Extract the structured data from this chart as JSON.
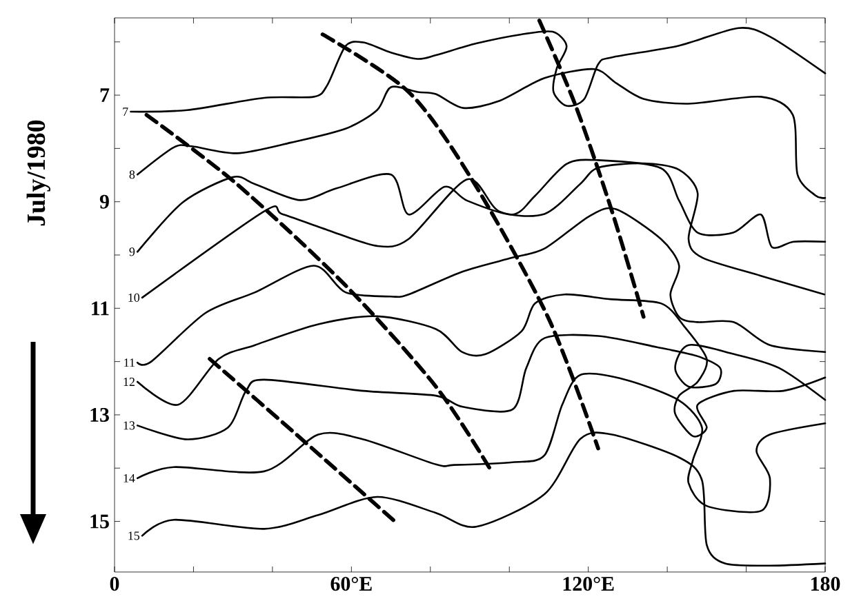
{
  "chart_data": {
    "type": "line",
    "ylabel": "July/1980",
    "xlim": [
      0,
      180
    ],
    "ylim": [
      15.95,
      5.55
    ],
    "xticks": [
      0,
      {
        "value": 20,
        "label": null
      },
      {
        "value": 40,
        "label": null
      },
      {
        "value": 60,
        "label": "60°E"
      },
      {
        "value": 80,
        "label": null
      },
      {
        "value": 100,
        "label": null
      },
      {
        "value": 120,
        "label": "120°E"
      },
      {
        "value": 140,
        "label": null
      },
      {
        "value": 160,
        "label": null
      },
      180
    ],
    "yticks": [
      {
        "value": 6,
        "label": null
      },
      7,
      {
        "value": 8,
        "label": null
      },
      9,
      {
        "value": 10,
        "label": null
      },
      11,
      {
        "value": 12,
        "label": null
      },
      13,
      {
        "value": 14,
        "label": null
      },
      15
    ],
    "grid": false,
    "legend": "left",
    "marker": "none",
    "series": [
      {
        "name": "7",
        "color": "#000000",
        "line_style": "solid",
        "x": [
          4.1,
          18.4,
          37.9,
          50.5,
          53.9,
          58.5,
          63,
          70,
          76.8,
          81.4,
          91.6,
          103,
          111,
          114.5,
          112,
          111.2,
          114.5,
          119,
          122.5,
          126,
          143,
          158,
          166,
          180
        ],
        "values": [
          7.31,
          7.28,
          7.05,
          7.03,
          6.81,
          6.08,
          6.01,
          6.2,
          6.32,
          6.25,
          6.03,
          5.86,
          5.81,
          6.08,
          6.5,
          6.94,
          7.2,
          7.07,
          6.42,
          6.29,
          6.07,
          5.74,
          5.9,
          6.59
        ]
      },
      {
        "name": "8",
        "color": "#000000",
        "line_style": "solid",
        "x": [
          5.8,
          15,
          19.6,
          31,
          44.7,
          58.5,
          66.5,
          70,
          76.8,
          81.4,
          88.3,
          97.4,
          108.9,
          121.4,
          127,
          134,
          145.4,
          163.7,
          171.8,
          173,
          177.5,
          180
        ],
        "values": [
          8.49,
          7.98,
          7.96,
          8.09,
          7.89,
          7.63,
          7.28,
          6.85,
          6.94,
          6.98,
          7.24,
          7.11,
          6.68,
          6.51,
          6.77,
          7.07,
          7.16,
          7.03,
          7.37,
          8.49,
          8.88,
          8.93
        ]
      },
      {
        "name": "9",
        "color": "#000000",
        "line_style": "solid",
        "x": [
          5.8,
          17.3,
          29.9,
          35.6,
          47,
          56.2,
          70,
          74.5,
          83.6,
          89.3,
          100.8,
          106.5,
          114.5,
          122.5,
          138.4,
          143,
          147.7,
          156.7,
          163.7,
          166.5,
          172,
          180
        ],
        "values": [
          9.94,
          9.01,
          8.54,
          8.67,
          8.97,
          8.75,
          8.49,
          9.24,
          8.72,
          8.98,
          9.24,
          8.89,
          8.29,
          8.22,
          8.37,
          8.98,
          9.58,
          9.58,
          9.24,
          9.85,
          9.75,
          9.75
        ]
      },
      {
        "name": "10",
        "color": "#000000",
        "line_style": "solid",
        "x": [
          7,
          37.9,
          42.4,
          53.9,
          66.5,
          74.5,
          89.3,
          97.4,
          108.9,
          117.9,
          122.5,
          134,
          143,
          147.7,
          145.4,
          148.9,
          163.7,
          179.8
        ],
        "values": [
          10.8,
          9.18,
          9.23,
          9.53,
          9.83,
          9.7,
          8.58,
          9.18,
          9.23,
          8.67,
          8.36,
          8.28,
          8.4,
          8.84,
          9.7,
          10.05,
          10.39,
          10.74
        ]
      },
      {
        "name": "11",
        "color": "#000000",
        "line_style": "solid",
        "x": [
          5.8,
          9.3,
          23,
          35.6,
          50.5,
          58.5,
          70,
          74.5,
          88.2,
          100.8,
          108.9,
          120.3,
          127,
          138.4,
          143,
          140.8,
          143.1,
          147.7,
          156.9,
          166,
          180
        ],
        "values": [
          12.02,
          12.0,
          11.09,
          10.7,
          10.2,
          10.7,
          10.78,
          10.74,
          10.31,
          10.05,
          9.88,
          9.27,
          9.14,
          9.7,
          10.2,
          10.74,
          11.17,
          11.26,
          11.26,
          11.69,
          11.82
        ]
      },
      {
        "name": "12",
        "color": "#000000",
        "line_style": "solid",
        "x": [
          5.8,
          16.1,
          26.4,
          35.6,
          51.6,
          66.5,
          81.4,
          88,
          94,
          103.1,
          106.5,
          114,
          125.6,
          138.5,
          144.3,
          150,
          147.7,
          143,
          142,
          146.5,
          150,
          147.7,
          156.9,
          169.4,
          180
        ],
        "values": [
          12.38,
          12.81,
          11.95,
          11.69,
          11.3,
          11.15,
          11.39,
          11.82,
          11.86,
          11.43,
          10.91,
          10.74,
          10.83,
          10.91,
          11.34,
          11.95,
          12.38,
          12.64,
          12.98,
          13.4,
          13.24,
          12.81,
          12.55,
          12.55,
          12.3
        ]
      },
      {
        "name": "13",
        "color": "#000000",
        "line_style": "solid",
        "x": [
          5.8,
          18.4,
          28.7,
          33.3,
          37.9,
          63,
          81.4,
          88.2,
          100.8,
          104.3,
          108.9,
          122.6,
          137.4,
          147.7,
          153.4,
          152.3,
          145.4,
          142,
          145.4,
          156.9,
          168.3,
          180
        ],
        "values": [
          13.2,
          13.46,
          13.24,
          12.55,
          12.34,
          12.55,
          12.64,
          12.85,
          12.9,
          12.12,
          11.56,
          11.52,
          11.73,
          11.9,
          12.12,
          12.42,
          12.47,
          12.12,
          11.69,
          11.86,
          12.12,
          12.72
        ]
      },
      {
        "name": "14",
        "color": "#000000",
        "line_style": "solid",
        "x": [
          5.8,
          15,
          37.9,
          51.6,
          63,
          81.4,
          86,
          100.8,
          108.9,
          113.4,
          118,
          129.4,
          143,
          148.8,
          146.5,
          145.4,
          150,
          163.8,
          166,
          162.6,
          166,
          180
        ],
        "values": [
          14.19,
          13.98,
          14.06,
          13.37,
          13.46,
          13.93,
          13.94,
          13.89,
          13.76,
          12.81,
          12.25,
          12.34,
          12.73,
          13.24,
          13.85,
          14.28,
          14.71,
          14.8,
          14.19,
          13.68,
          13.37,
          13.16
        ]
      },
      {
        "name": "15",
        "color": "#000000",
        "line_style": "solid",
        "x": [
          7,
          15,
          37.9,
          51.6,
          66.5,
          81.4,
          91.6,
          108.9,
          118,
          126,
          143,
          148.8,
          150,
          154.6,
          166,
          180
        ],
        "values": [
          15.27,
          14.97,
          15.14,
          14.88,
          14.54,
          14.84,
          15.1,
          14.49,
          13.45,
          13.37,
          13.8,
          14.23,
          15.44,
          15.79,
          15.83,
          15.79
        ]
      },
      {
        "color": "#000000",
        "line_style": "dashed",
        "x": [
          8.1,
          31,
          58.5,
          81.4,
          95
        ],
        "values": [
          7.37,
          8.67,
          10.57,
          12.47,
          14.0
        ]
      },
      {
        "color": "#000000",
        "line_style": "dashed",
        "x": [
          24.1,
          45,
          71
        ],
        "values": [
          11.95,
          13.3,
          15.0
        ]
      },
      {
        "color": "#000000",
        "line_style": "dashed",
        "x": [
          52.7,
          74.5,
          90.5,
          110,
          122.5
        ],
        "values": [
          5.86,
          6.94,
          8.58,
          11.2,
          13.63
        ]
      },
      {
        "color": "#000000",
        "line_style": "dashed",
        "x": [
          107.6,
          116.8,
          126,
          134
        ],
        "values": [
          5.6,
          7.2,
          9.18,
          11.16
        ]
      }
    ]
  }
}
